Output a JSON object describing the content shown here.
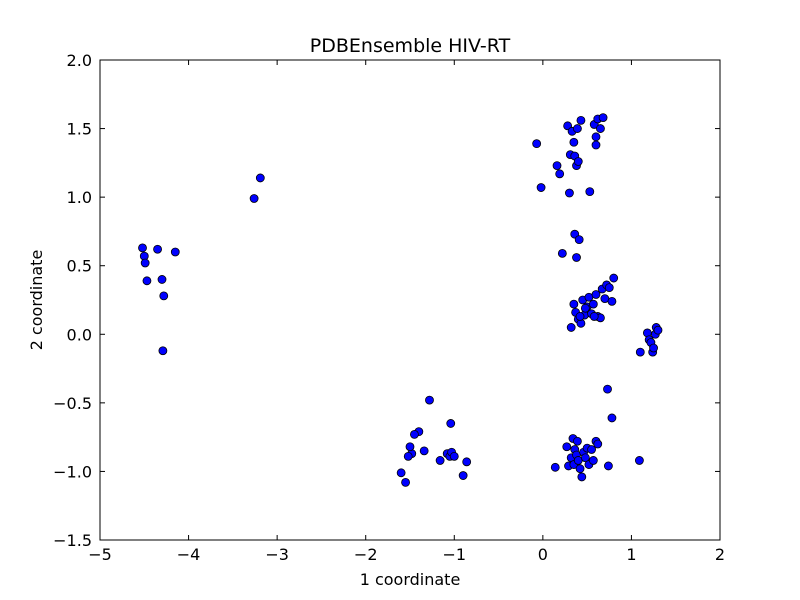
{
  "chart_data": {
    "type": "scatter",
    "title": "PDBEnsemble HIV-RT",
    "xlabel": "1 coordinate",
    "ylabel": "2 coordinate",
    "xlim": [
      -5,
      2
    ],
    "ylim": [
      -1.5,
      2.0
    ],
    "grid": false,
    "legend": "none",
    "x_ticks": [
      -5,
      -4,
      -3,
      -2,
      -1,
      0,
      1,
      2
    ],
    "x_tick_labels": [
      "−5",
      "−4",
      "−3",
      "−2",
      "−1",
      "0",
      "1",
      "2"
    ],
    "y_ticks": [
      -1.5,
      -1.0,
      -0.5,
      0.0,
      0.5,
      1.0,
      1.5,
      2.0
    ],
    "y_tick_labels": [
      "−1.5",
      "−1.0",
      "−0.5",
      "0.0",
      "0.5",
      "1.0",
      "1.5",
      "2.0"
    ],
    "marker_color": "#0000ff",
    "marker_edge_color": "#000000",
    "series": [
      {
        "x": [
          -4.52,
          -4.5,
          -4.49,
          -4.47,
          -4.35,
          -4.3,
          -4.28,
          -4.15,
          -4.29,
          -3.26,
          -3.19,
          -0.07,
          -0.02,
          0.16,
          0.19,
          0.28,
          0.3,
          0.31,
          0.33,
          0.35,
          0.36,
          0.38,
          0.39,
          0.4,
          0.43,
          0.53,
          0.58,
          0.6,
          0.6,
          0.62,
          0.65,
          0.68,
          0.22,
          0.36,
          0.38,
          0.41,
          0.32,
          0.35,
          0.37,
          0.4,
          0.43,
          0.45,
          0.47,
          0.5,
          0.52,
          0.55,
          0.57,
          0.6,
          0.62,
          0.65,
          0.67,
          0.7,
          0.72,
          0.75,
          0.78,
          0.8,
          0.42,
          0.58,
          0.48,
          1.1,
          1.18,
          1.2,
          1.22,
          1.24,
          1.25,
          1.27,
          1.28,
          1.3,
          -1.28,
          -1.04,
          -1.4,
          -1.45,
          -1.48,
          -1.5,
          -1.52,
          -1.6,
          -1.55,
          -1.34,
          -1.16,
          -1.08,
          -1.05,
          -1.03,
          -1.0,
          -0.9,
          -0.86,
          0.73,
          0.78,
          0.14,
          0.27,
          0.29,
          0.32,
          0.34,
          0.35,
          0.36,
          0.38,
          0.39,
          0.4,
          0.42,
          0.44,
          0.46,
          0.48,
          0.5,
          0.52,
          0.55,
          0.57,
          0.6,
          0.62,
          0.74,
          1.09
        ]
      },
      {
        "y": [
          0.63,
          0.57,
          0.52,
          0.39,
          0.62,
          0.4,
          0.28,
          0.6,
          -0.12,
          0.99,
          1.14,
          1.39,
          1.07,
          1.23,
          1.17,
          1.52,
          1.03,
          1.31,
          1.48,
          1.4,
          1.3,
          1.23,
          1.5,
          1.26,
          1.56,
          1.04,
          1.53,
          1.44,
          1.38,
          1.57,
          1.5,
          1.58,
          0.59,
          0.73,
          0.56,
          0.69,
          0.05,
          0.22,
          0.16,
          0.11,
          0.08,
          0.25,
          0.14,
          0.2,
          0.27,
          0.15,
          0.22,
          0.29,
          0.13,
          0.12,
          0.33,
          0.26,
          0.36,
          0.34,
          0.24,
          0.41,
          0.13,
          0.13,
          0.19,
          -0.13,
          0.01,
          -0.04,
          -0.06,
          -0.13,
          -0.1,
          0.0,
          0.05,
          0.03,
          -0.48,
          -0.65,
          -0.71,
          -0.73,
          -0.87,
          -0.82,
          -0.89,
          -1.01,
          -1.08,
          -0.85,
          -0.92,
          -0.87,
          -0.89,
          -0.86,
          -0.89,
          -1.03,
          -0.93,
          -0.4,
          -0.61,
          -0.97,
          -0.82,
          -0.96,
          -0.9,
          -0.76,
          -0.95,
          -0.84,
          -0.88,
          -0.78,
          -0.92,
          -0.98,
          -1.04,
          -0.86,
          -0.9,
          -0.83,
          -0.95,
          -0.84,
          -0.92,
          -0.78,
          -0.8,
          -0.96,
          -0.92
        ]
      }
    ]
  }
}
